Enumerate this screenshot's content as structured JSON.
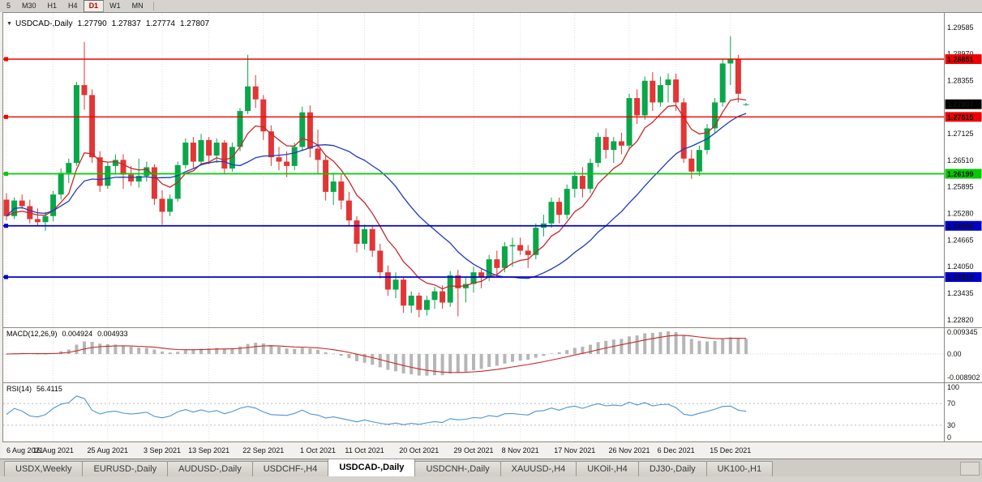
{
  "toolbar": {
    "timeframes": [
      {
        "label": "5",
        "active": false
      },
      {
        "label": "M30",
        "active": false
      },
      {
        "label": "H1",
        "active": false
      },
      {
        "label": "H4",
        "active": false
      },
      {
        "label": "D1",
        "active": true
      },
      {
        "label": "W1",
        "active": false
      },
      {
        "label": "MN",
        "active": false
      }
    ]
  },
  "header": {
    "collapse_icon": "▼",
    "symbol": "USDCAD-,Daily",
    "open": "1.27790",
    "high": "1.27837",
    "low": "1.27774",
    "close": "1.27807"
  },
  "chart_data": {
    "type": "candlestick",
    "symbol": "USDCAD-",
    "timeframe": "Daily",
    "up_color": "#0aa64b",
    "down_color": "#e23535",
    "y_range": [
      1.22667,
      1.29919
    ],
    "y_ticks": [
      "1.29585",
      "1.28970",
      "1.28355",
      "1.27125",
      "1.26510",
      "1.25895",
      "1.25280",
      "1.24665",
      "1.24050",
      "1.23435",
      "1.22820"
    ],
    "x_tick_labels": [
      "6 Aug 2021",
      "16 Aug 2021",
      "25 Aug 2021",
      "3 Sep 2021",
      "13 Sep 2021",
      "22 Sep 2021",
      "1 Oct 2021",
      "11 Oct 2021",
      "20 Oct 2021",
      "29 Oct 2021",
      "8 Nov 2021",
      "17 Nov 2021",
      "26 Nov 2021",
      "6 Dec 2021",
      "15 Dec 2021"
    ],
    "x_tick_indices": [
      0,
      6,
      13,
      20,
      26,
      33,
      40,
      46,
      53,
      60,
      66,
      73,
      80,
      86,
      93
    ],
    "current_price": {
      "value": "1.27807",
      "badge_color": "#000000"
    },
    "h_lines": [
      {
        "price": 1.28851,
        "label": "1.28851",
        "color": "#f00000",
        "width": 1.4
      },
      {
        "price": 1.27515,
        "label": "1.27515",
        "color": "#f00000",
        "width": 1.4
      },
      {
        "price": 1.26199,
        "label": "1.26199",
        "color": "#00cc00",
        "width": 1.8
      },
      {
        "price": 1.24995,
        "label": "1.24995",
        "color": "#0000cc",
        "width": 1.8
      },
      {
        "price": 1.2381,
        "label": "1.23810",
        "color": "#0000cc",
        "width": 1.8
      }
    ],
    "overlays": [
      {
        "name": "fast-ma",
        "type": "ema",
        "period": 8,
        "color": "#c62828"
      },
      {
        "name": "slow-ma",
        "type": "sma",
        "period": 20,
        "color": "#1f3bbf"
      }
    ],
    "indicators": [
      {
        "label": "MACD(12,26,9)",
        "values": [
          "0.004924",
          "0.004933"
        ],
        "axis_labels": [
          "0.009345",
          "0.00",
          "-0.008902"
        ],
        "histogram_color": "#b6b6b6",
        "signal_color": "#c62828"
      },
      {
        "label": "RSI(14)",
        "value": "56.4115",
        "axis_labels": [
          "100",
          "70",
          "30",
          "0"
        ],
        "levels": [
          70,
          30
        ],
        "line_color": "#4d94d6"
      }
    ],
    "candles": [
      [
        "6 Aug",
        1.256,
        1.2575,
        1.2512,
        1.2522
      ],
      [
        "9 Aug",
        1.2522,
        1.2565,
        1.2515,
        1.2558
      ],
      [
        "10 Aug",
        1.2558,
        1.2572,
        1.2538,
        1.2545
      ],
      [
        "11 Aug",
        1.2545,
        1.256,
        1.2505,
        1.2515
      ],
      [
        "12 Aug",
        1.2515,
        1.254,
        1.2498,
        1.2508
      ],
      [
        "13 Aug",
        1.2508,
        1.2532,
        1.2488,
        1.2522
      ],
      [
        "16 Aug",
        1.2522,
        1.258,
        1.251,
        1.2572
      ],
      [
        "17 Aug",
        1.2572,
        1.2632,
        1.256,
        1.2622
      ],
      [
        "18 Aug",
        1.2622,
        1.2655,
        1.2598,
        1.2645
      ],
      [
        "19 Aug",
        1.2645,
        1.2832,
        1.2638,
        1.2825
      ],
      [
        "20 Aug",
        1.2825,
        1.2925,
        1.2768,
        1.2802
      ],
      [
        "23 Aug",
        1.2802,
        1.2815,
        1.2645,
        1.2658
      ],
      [
        "24 Aug",
        1.2658,
        1.2672,
        1.2578,
        1.2592
      ],
      [
        "25 Aug",
        1.2592,
        1.2648,
        1.2585,
        1.2638
      ],
      [
        "26 Aug",
        1.2638,
        1.2665,
        1.2618,
        1.2652
      ],
      [
        "27 Aug",
        1.2652,
        1.2665,
        1.2585,
        1.2618
      ],
      [
        "30 Aug",
        1.2618,
        1.2638,
        1.2592,
        1.2602
      ],
      [
        "31 Aug",
        1.2602,
        1.2655,
        1.2588,
        1.2615
      ],
      [
        "1 Sep",
        1.2615,
        1.2648,
        1.2602,
        1.2635
      ],
      [
        "2 Sep",
        1.2635,
        1.2642,
        1.2548,
        1.2562
      ],
      [
        "3 Sep",
        1.2562,
        1.2582,
        1.2502,
        1.2532
      ],
      [
        "6 Sep",
        1.2532,
        1.2572,
        1.2522,
        1.2562
      ],
      [
        "7 Sep",
        1.2562,
        1.2648,
        1.2555,
        1.264
      ],
      [
        "8 Sep",
        1.264,
        1.2702,
        1.2632,
        1.2692
      ],
      [
        "9 Sep",
        1.2692,
        1.2705,
        1.2632,
        1.2648
      ],
      [
        "10 Sep",
        1.2648,
        1.2712,
        1.264,
        1.2698
      ],
      [
        "13 Sep",
        1.2698,
        1.2705,
        1.2642,
        1.2662
      ],
      [
        "14 Sep",
        1.2662,
        1.2702,
        1.2645,
        1.2692
      ],
      [
        "15 Sep",
        1.2692,
        1.2698,
        1.2618,
        1.2632
      ],
      [
        "16 Sep",
        1.2632,
        1.2692,
        1.2625,
        1.2682
      ],
      [
        "17 Sep",
        1.2682,
        1.2772,
        1.2672,
        1.2765
      ],
      [
        "20 Sep",
        1.2765,
        1.2895,
        1.2758,
        1.2822
      ],
      [
        "21 Sep",
        1.2822,
        1.2848,
        1.2772,
        1.2792
      ],
      [
        "22 Sep",
        1.2792,
        1.2802,
        1.2698,
        1.2718
      ],
      [
        "23 Sep",
        1.2718,
        1.2732,
        1.2638,
        1.2658
      ],
      [
        "24 Sep",
        1.2658,
        1.2682,
        1.2628,
        1.2648
      ],
      [
        "27 Sep",
        1.2648,
        1.2672,
        1.2612,
        1.2638
      ],
      [
        "28 Sep",
        1.2638,
        1.2692,
        1.2628,
        1.2682
      ],
      [
        "29 Sep",
        1.2682,
        1.2775,
        1.2672,
        1.2762
      ],
      [
        "30 Sep",
        1.2762,
        1.2778,
        1.2658,
        1.2678
      ],
      [
        "1 Oct",
        1.2678,
        1.2722,
        1.2618,
        1.2652
      ],
      [
        "4 Oct",
        1.2652,
        1.2662,
        1.2558,
        1.2578
      ],
      [
        "5 Oct",
        1.2578,
        1.2622,
        1.2548,
        1.2602
      ],
      [
        "6 Oct",
        1.2602,
        1.2618,
        1.2538,
        1.2558
      ],
      [
        "7 Oct",
        1.2558,
        1.2578,
        1.2498,
        1.2512
      ],
      [
        "8 Oct",
        1.2512,
        1.2522,
        1.2438,
        1.2458
      ],
      [
        "11 Oct",
        1.2458,
        1.2502,
        1.2445,
        1.2492
      ],
      [
        "12 Oct",
        1.2492,
        1.2498,
        1.2428,
        1.2442
      ],
      [
        "13 Oct",
        1.2442,
        1.2458,
        1.2378,
        1.2392
      ],
      [
        "14 Oct",
        1.2392,
        1.2408,
        1.2338,
        1.2352
      ],
      [
        "15 Oct",
        1.2352,
        1.2392,
        1.2332,
        1.2375
      ],
      [
        "18 Oct",
        1.2375,
        1.2382,
        1.2298,
        1.2315
      ],
      [
        "19 Oct",
        1.2315,
        1.2348,
        1.2298,
        1.2338
      ],
      [
        "20 Oct",
        1.2338,
        1.2345,
        1.2288,
        1.2305
      ],
      [
        "21 Oct",
        1.2305,
        1.2338,
        1.2292,
        1.2328
      ],
      [
        "22 Oct",
        1.2328,
        1.2358,
        1.2308,
        1.2348
      ],
      [
        "25 Oct",
        1.2348,
        1.2362,
        1.2308,
        1.2322
      ],
      [
        "26 Oct",
        1.2322,
        1.2395,
        1.2312,
        1.2385
      ],
      [
        "27 Oct",
        1.2385,
        1.2398,
        1.229,
        1.2355
      ],
      [
        "28 Oct",
        1.2355,
        1.2382,
        1.2322,
        1.2365
      ],
      [
        "29 Oct",
        1.2365,
        1.2405,
        1.2345,
        1.2392
      ],
      [
        "1 Nov",
        1.2392,
        1.2402,
        1.2355,
        1.2382
      ],
      [
        "2 Nov",
        1.2382,
        1.2432,
        1.2372,
        1.2422
      ],
      [
        "3 Nov",
        1.2422,
        1.2442,
        1.2382,
        1.2402
      ],
      [
        "4 Nov",
        1.2402,
        1.2462,
        1.2392,
        1.2452
      ],
      [
        "5 Nov",
        1.2452,
        1.2472,
        1.2405,
        1.2455
      ],
      [
        "8 Nov",
        1.2455,
        1.2472,
        1.2432,
        1.2442
      ],
      [
        "9 Nov",
        1.2442,
        1.2455,
        1.2402,
        1.2432
      ],
      [
        "10 Nov",
        1.2432,
        1.2505,
        1.2422,
        1.2495
      ],
      [
        "11 Nov",
        1.2495,
        1.2525,
        1.2475,
        1.2505
      ],
      [
        "12 Nov",
        1.2505,
        1.2565,
        1.2495,
        1.2555
      ],
      [
        "15 Nov",
        1.2555,
        1.2565,
        1.2505,
        1.2525
      ],
      [
        "16 Nov",
        1.2525,
        1.2595,
        1.2515,
        1.2585
      ],
      [
        "17 Nov",
        1.2585,
        1.2625,
        1.2565,
        1.2615
      ],
      [
        "18 Nov",
        1.2615,
        1.2635,
        1.2565,
        1.2585
      ],
      [
        "19 Nov",
        1.2585,
        1.2655,
        1.2575,
        1.2645
      ],
      [
        "22 Nov",
        1.2645,
        1.2715,
        1.2635,
        1.2705
      ],
      [
        "23 Nov",
        1.2705,
        1.2725,
        1.2655,
        1.2675
      ],
      [
        "24 Nov",
        1.2675,
        1.2705,
        1.2645,
        1.2695
      ],
      [
        "25 Nov",
        1.2695,
        1.2715,
        1.2665,
        1.2685
      ],
      [
        "26 Nov",
        1.2685,
        1.2805,
        1.2675,
        1.2795
      ],
      [
        "29 Nov",
        1.2795,
        1.2815,
        1.2735,
        1.2755
      ],
      [
        "30 Nov",
        1.2755,
        1.2845,
        1.2745,
        1.2835
      ],
      [
        "1 Dec",
        1.2835,
        1.2855,
        1.2765,
        1.2785
      ],
      [
        "2 Dec",
        1.2785,
        1.2845,
        1.2775,
        1.2825
      ],
      [
        "3 Dec",
        1.2825,
        1.2852,
        1.2785,
        1.2838
      ],
      [
        "6 Dec",
        1.2838,
        1.2852,
        1.2765,
        1.2785
      ],
      [
        "7 Dec",
        1.2785,
        1.2795,
        1.2645,
        1.2655
      ],
      [
        "8 Dec",
        1.2655,
        1.2675,
        1.2608,
        1.2625
      ],
      [
        "9 Dec",
        1.2625,
        1.2685,
        1.2615,
        1.2675
      ],
      [
        "10 Dec",
        1.2675,
        1.2735,
        1.2665,
        1.2725
      ],
      [
        "13 Dec",
        1.2725,
        1.2795,
        1.2715,
        1.2785
      ],
      [
        "14 Dec",
        1.2785,
        1.2885,
        1.2775,
        1.2875
      ],
      [
        "15 Dec",
        1.2875,
        1.2938,
        1.2825,
        1.2885
      ],
      [
        "16 Dec",
        1.2885,
        1.2895,
        1.2785,
        1.2805
      ],
      [
        "17 Dec",
        1.2779,
        1.27837,
        1.27774,
        1.27807
      ]
    ]
  },
  "tabs": {
    "items": [
      {
        "label": "USDX,Weekly",
        "active": false
      },
      {
        "label": "EURUSD-,Daily",
        "active": false
      },
      {
        "label": "AUDUSD-,Daily",
        "active": false
      },
      {
        "label": "USDCHF-,H4",
        "active": false
      },
      {
        "label": "USDCAD-,Daily",
        "active": true
      },
      {
        "label": "USDCNH-,Daily",
        "active": false
      },
      {
        "label": "XAUUSD-,H4",
        "active": false
      },
      {
        "label": "UKOil-,H4",
        "active": false
      },
      {
        "label": "DJ30-,Daily",
        "active": false
      },
      {
        "label": "UK100-,H1",
        "active": false
      }
    ]
  }
}
